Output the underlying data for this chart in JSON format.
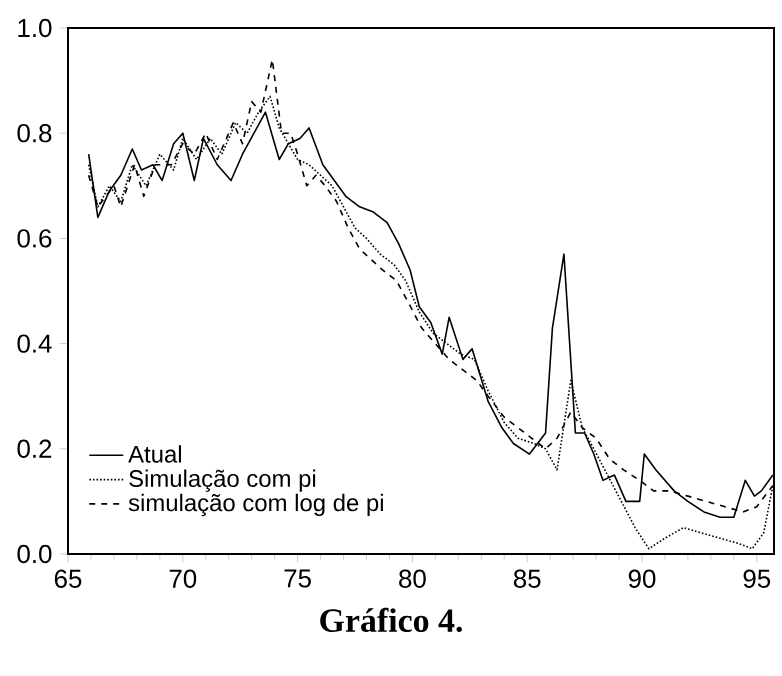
{
  "chart_data": {
    "type": "line",
    "annotations": [
      "Gráfico 4."
    ],
    "xlim": [
      65,
      95.75
    ],
    "xticks": [
      65,
      70,
      75,
      80,
      85,
      90,
      95
    ],
    "ylim": [
      0,
      1
    ],
    "yticks": [
      {
        "value": 0,
        "label": "0.0"
      },
      {
        "value": 0.2,
        "label": "0.2"
      },
      {
        "value": 0.4,
        "label": "0.4"
      },
      {
        "value": 0.6,
        "label": "0.6"
      },
      {
        "value": 0.8,
        "label": "0.8"
      },
      {
        "value": 1,
        "label": "1.0"
      }
    ],
    "legend": "bottom left",
    "grid": false,
    "marker": "none",
    "series": [
      {
        "name": "Atual",
        "color": "#000000",
        "line_style": "solid",
        "x": [
          65.9,
          66.3,
          66.8,
          67.3,
          67.8,
          68.2,
          68.7,
          69.1,
          69.6,
          70.0,
          70.5,
          70.9,
          71.5,
          72.1,
          72.6,
          73.1,
          73.6,
          74.2,
          74.6,
          75.1,
          75.5,
          76.1,
          76.6,
          77.1,
          77.7,
          78.3,
          78.9,
          79.4,
          79.9,
          80.3,
          80.8,
          81.3,
          81.6,
          82.2,
          82.6,
          83.3,
          83.9,
          84.4,
          85.1,
          85.8,
          86.1,
          86.6,
          87.1,
          87.5,
          87.9,
          88.3,
          88.8,
          89.3,
          89.9,
          90.1,
          90.6,
          91.4,
          92.0,
          92.7,
          93.4,
          94.0,
          94.5,
          94.9,
          95.2,
          95.7
        ],
        "values": [
          0.76,
          0.64,
          0.69,
          0.72,
          0.77,
          0.73,
          0.74,
          0.71,
          0.78,
          0.8,
          0.71,
          0.79,
          0.74,
          0.71,
          0.76,
          0.8,
          0.84,
          0.75,
          0.78,
          0.79,
          0.81,
          0.74,
          0.71,
          0.68,
          0.66,
          0.65,
          0.63,
          0.59,
          0.54,
          0.47,
          0.44,
          0.38,
          0.45,
          0.37,
          0.39,
          0.29,
          0.24,
          0.21,
          0.19,
          0.23,
          0.43,
          0.57,
          0.23,
          0.23,
          0.19,
          0.14,
          0.15,
          0.1,
          0.1,
          0.19,
          0.16,
          0.12,
          0.1,
          0.08,
          0.07,
          0.07,
          0.14,
          0.11,
          0.12,
          0.15
        ]
      },
      {
        "name": "Simulação com pi",
        "color": "#000000",
        "line_style": "dotted",
        "x": [
          65.9,
          66.3,
          66.8,
          67.3,
          67.8,
          68.4,
          69.0,
          69.6,
          70.0,
          70.6,
          71.2,
          71.7,
          72.3,
          72.8,
          73.3,
          73.8,
          74.2,
          74.6,
          75.0,
          75.5,
          76.0,
          76.5,
          77.0,
          77.5,
          78.0,
          78.6,
          79.2,
          79.7,
          80.3,
          80.9,
          81.5,
          82.1,
          82.7,
          83.3,
          84.0,
          84.6,
          85.3,
          85.8,
          86.3,
          86.9,
          87.4,
          87.9,
          88.5,
          89.1,
          89.7,
          90.3,
          91.0,
          91.8,
          92.6,
          93.4,
          94.2,
          94.8,
          95.3,
          95.7
        ],
        "values": [
          0.74,
          0.66,
          0.7,
          0.67,
          0.74,
          0.7,
          0.76,
          0.73,
          0.79,
          0.75,
          0.79,
          0.76,
          0.82,
          0.8,
          0.84,
          0.87,
          0.81,
          0.78,
          0.75,
          0.74,
          0.72,
          0.7,
          0.66,
          0.62,
          0.6,
          0.57,
          0.55,
          0.52,
          0.46,
          0.42,
          0.4,
          0.38,
          0.37,
          0.31,
          0.25,
          0.22,
          0.21,
          0.2,
          0.16,
          0.33,
          0.24,
          0.2,
          0.15,
          0.1,
          0.05,
          0.01,
          0.03,
          0.05,
          0.04,
          0.03,
          0.02,
          0.01,
          0.04,
          0.13
        ]
      },
      {
        "name": "simulação com log de pi",
        "color": "#000000",
        "line_style": "dashed",
        "x": [
          65.9,
          66.3,
          67.0,
          67.3,
          67.9,
          68.3,
          68.8,
          69.5,
          70.0,
          70.5,
          71.0,
          71.5,
          72.2,
          72.6,
          73.0,
          73.4,
          73.9,
          74.3,
          74.7,
          75.0,
          75.4,
          75.8,
          76.2,
          76.7,
          77.2,
          77.7,
          78.2,
          78.7,
          79.3,
          79.8,
          80.4,
          81.0,
          81.6,
          82.2,
          82.8,
          83.3,
          84.0,
          84.6,
          85.2,
          85.8,
          86.3,
          86.9,
          87.4,
          88.0,
          88.6,
          89.2,
          89.9,
          90.5,
          91.2,
          92.0,
          92.8,
          93.6,
          94.4,
          95.0,
          95.7
        ],
        "values": [
          0.72,
          0.66,
          0.7,
          0.66,
          0.74,
          0.68,
          0.74,
          0.74,
          0.78,
          0.76,
          0.8,
          0.75,
          0.82,
          0.78,
          0.86,
          0.84,
          0.94,
          0.8,
          0.8,
          0.76,
          0.7,
          0.72,
          0.7,
          0.67,
          0.62,
          0.58,
          0.56,
          0.54,
          0.52,
          0.48,
          0.43,
          0.4,
          0.37,
          0.35,
          0.33,
          0.3,
          0.26,
          0.24,
          0.22,
          0.2,
          0.22,
          0.27,
          0.24,
          0.22,
          0.18,
          0.16,
          0.14,
          0.12,
          0.12,
          0.11,
          0.1,
          0.09,
          0.08,
          0.09,
          0.13
        ]
      }
    ]
  }
}
